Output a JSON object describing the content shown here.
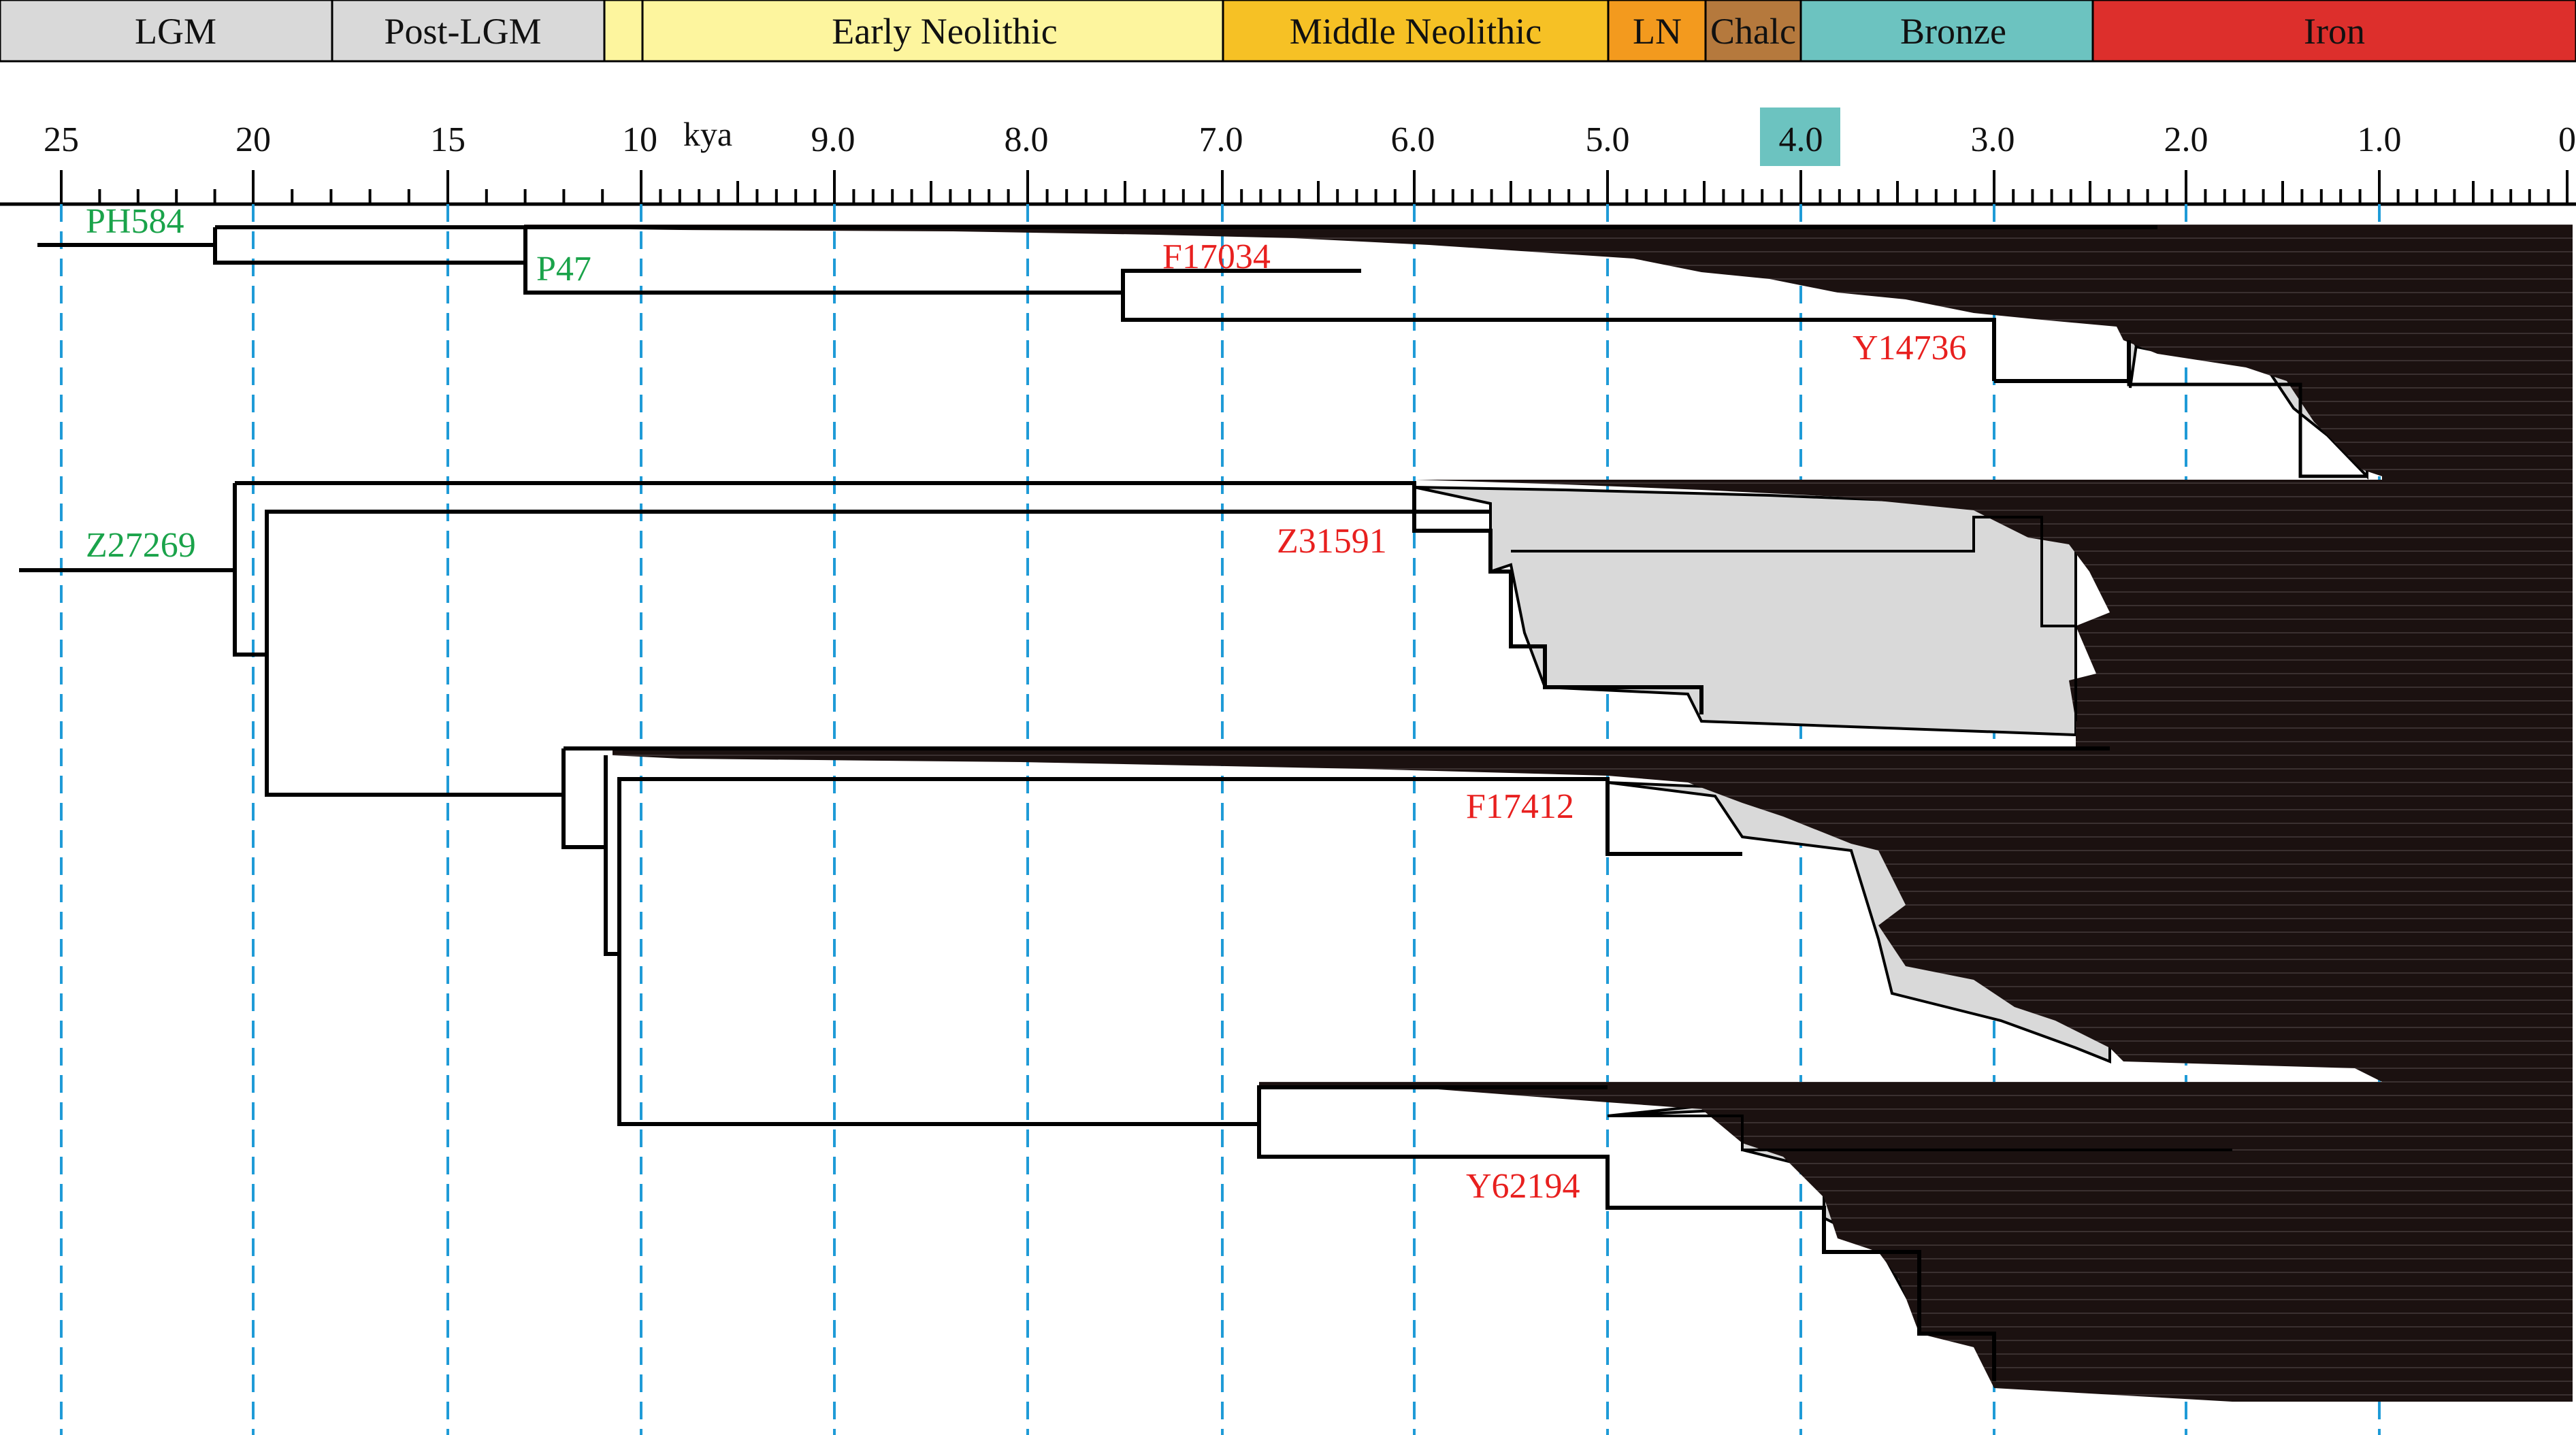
{
  "periods": [
    {
      "label": "LGM",
      "color": "#d9d9d9"
    },
    {
      "label": "Post-LGM",
      "color": "#d9d9d9"
    },
    {
      "label": "",
      "color": "#fdf59e"
    },
    {
      "label": "Early Neolithic",
      "color": "#fdf59e"
    },
    {
      "label": "Middle Neolithic",
      "color": "#f6c125"
    },
    {
      "label": "LN",
      "color": "#f39a1e"
    },
    {
      "label": "Chalc",
      "color": "#b5793d"
    },
    {
      "label": "Bronze",
      "color": "#6cc3c0"
    },
    {
      "label": "Iron",
      "color": "#dd2f2c"
    }
  ],
  "axis": {
    "unit_label": "kya",
    "major_ticks": [
      "25",
      "20",
      "15",
      "10",
      "9.0",
      "8.0",
      "7.0",
      "6.0",
      "5.0",
      "4.0",
      "3.0",
      "2.0",
      "1.0",
      "0"
    ],
    "highlight_tick": "4.0",
    "highlight_color": "#6cc3c0",
    "gridline_color": "#1f9bd7"
  },
  "nodes": [
    {
      "label": "PH584",
      "age_kya": 21,
      "color": "#1aa34a"
    },
    {
      "label": "P47",
      "age_kya": 13,
      "color": "#1aa34a"
    },
    {
      "label": "F17034",
      "age_kya": 7.5,
      "color": "#e8201f"
    },
    {
      "label": "Y14736",
      "age_kya": 3.0,
      "color": "#e8201f"
    },
    {
      "label": "Z27269",
      "age_kya": 20.5,
      "color": "#1aa34a"
    },
    {
      "label": "Z31591",
      "age_kya": 6.0,
      "color": "#e8201f"
    },
    {
      "label": "F17412",
      "age_kya": 5.0,
      "color": "#e8201f"
    },
    {
      "label": "Y62194",
      "age_kya": 5.0,
      "color": "#e8201f"
    }
  ]
}
